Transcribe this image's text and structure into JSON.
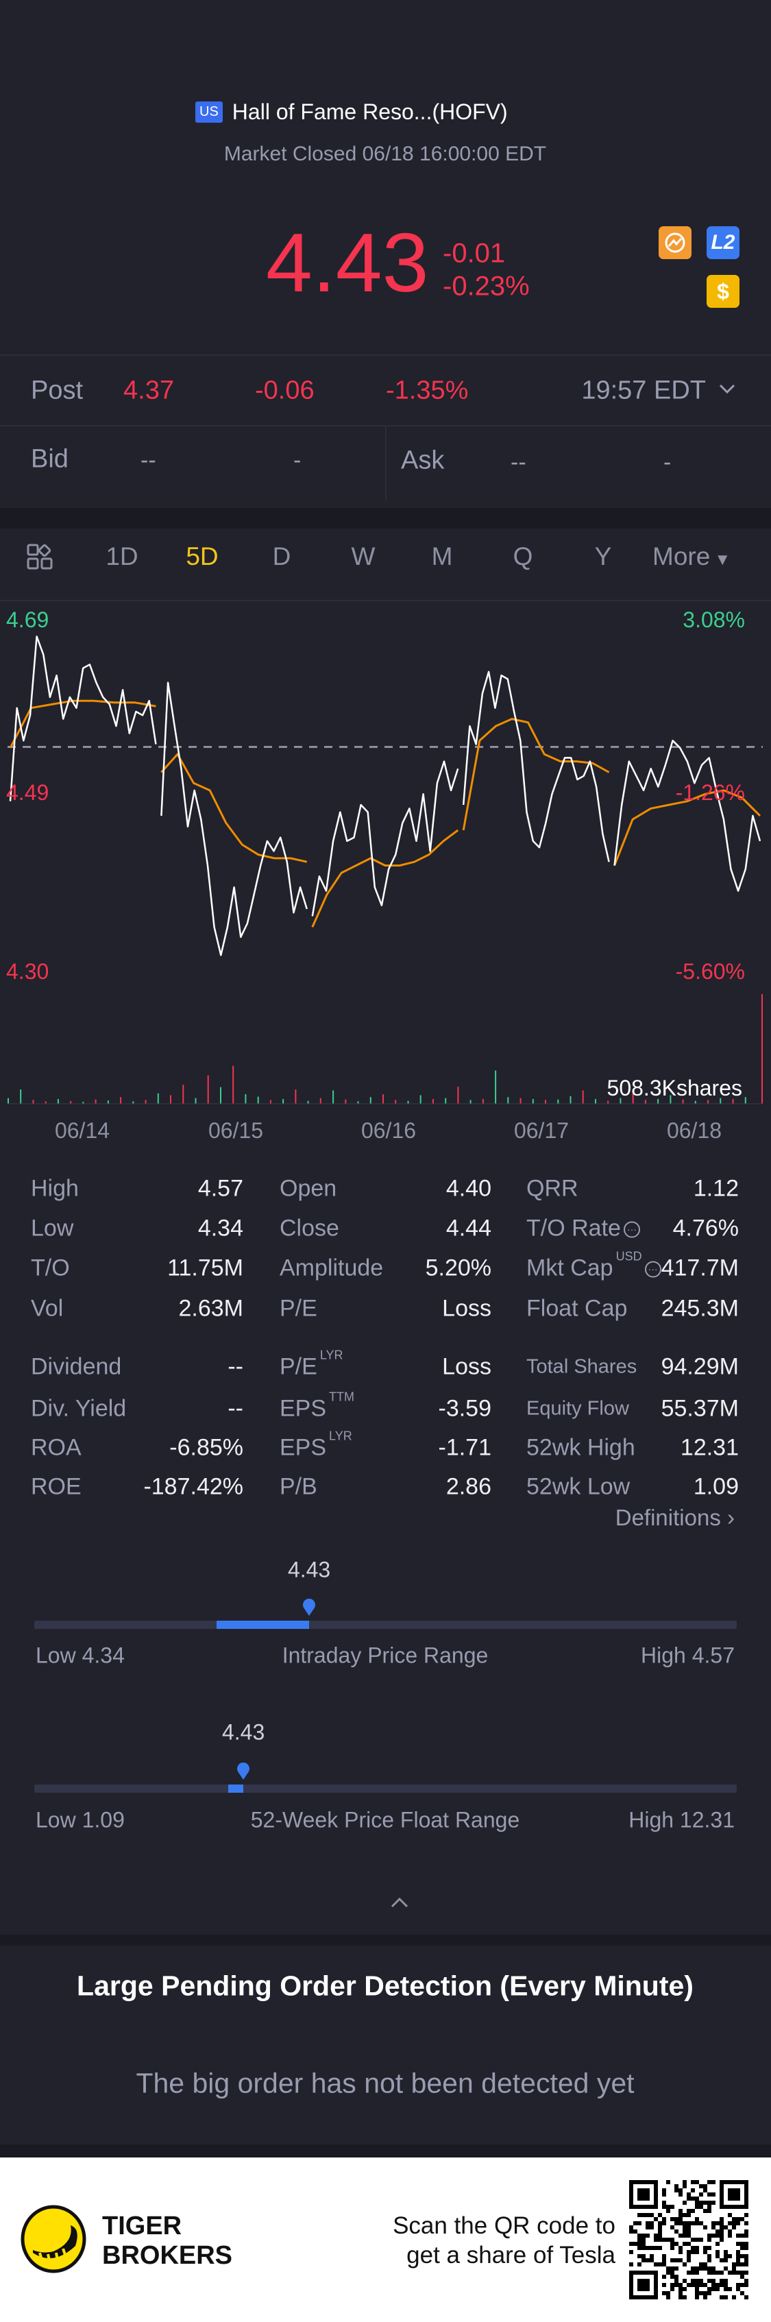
{
  "header": {
    "market_badge": "US",
    "title": "Hall of Fame Reso...(HOFV)",
    "status": "Market Closed 06/18 16:00:00 EDT"
  },
  "quote": {
    "price": "4.43",
    "change": "-0.01",
    "change_pct": "-0.23%",
    "icons": [
      "tradeup-icon",
      "level2-icon",
      "dollar-icon"
    ],
    "level2_label": "L2",
    "dollar_label": "$"
  },
  "post": {
    "label": "Post",
    "price": "4.37",
    "change": "-0.06",
    "change_pct": "-1.35%",
    "time": "19:57 EDT"
  },
  "bidask": {
    "bid_label": "Bid",
    "bid_price": "--",
    "bid_size": "-",
    "ask_label": "Ask",
    "ask_price": "--",
    "ask_size": "-"
  },
  "tabs": [
    {
      "label": "1D"
    },
    {
      "label": "5D",
      "active": true
    },
    {
      "label": "D"
    },
    {
      "label": "W"
    },
    {
      "label": "M"
    },
    {
      "label": "Q"
    },
    {
      "label": "Y"
    },
    {
      "label": "More"
    }
  ],
  "colors": {
    "up": "#3ccf8e",
    "down": "#f5344f",
    "accent": "#f5c518",
    "avg": "#f08c00",
    "blue": "#3a7bf2"
  },
  "chart_data": {
    "type": "line",
    "title": "5D intraday",
    "ylim": [
      4.3,
      4.69
    ],
    "y_labels_left": [
      "4.69",
      "4.49",
      "4.30"
    ],
    "y_labels_right": [
      "3.08%",
      "-1.26%",
      "-5.60%"
    ],
    "prev_close": 4.548,
    "categories": [
      "06/14",
      "06/15",
      "06/16",
      "06/17",
      "06/18"
    ],
    "volume_label": "508.3Kshares",
    "series": [
      {
        "name": "Price",
        "days": [
          [
            4.488,
            4.591,
            4.555,
            4.583,
            4.67,
            4.65,
            4.603,
            4.627,
            4.579,
            4.603,
            4.591,
            4.635,
            4.639,
            4.619,
            4.603,
            4.595,
            4.571,
            4.611,
            4.563,
            4.587,
            4.583,
            4.599,
            4.551
          ],
          [
            4.472,
            4.619,
            4.571,
            4.524,
            4.46,
            4.5,
            4.468,
            4.417,
            4.349,
            4.318,
            4.349,
            4.393,
            4.338,
            4.353,
            4.385,
            4.417,
            4.444,
            4.433,
            4.448,
            4.421,
            4.365,
            4.393,
            4.369
          ],
          [
            4.361,
            4.405,
            4.389,
            4.444,
            4.476,
            4.444,
            4.448,
            4.484,
            4.476,
            4.393,
            4.373,
            4.413,
            4.429,
            4.464,
            4.48,
            4.444,
            4.496,
            4.433,
            4.508,
            4.532,
            4.5,
            4.524
          ],
          [
            4.484,
            4.571,
            4.551,
            4.607,
            4.631,
            4.591,
            4.627,
            4.623,
            4.587,
            4.555,
            4.476,
            4.444,
            4.437,
            4.464,
            4.496,
            4.516,
            4.536,
            4.536,
            4.512,
            4.516,
            4.532,
            4.504,
            4.452,
            4.421
          ],
          [
            4.417,
            4.484,
            4.532,
            4.516,
            4.5,
            4.524,
            4.504,
            4.528,
            4.555,
            4.547,
            4.532,
            4.508,
            4.528,
            4.536,
            4.5,
            4.468,
            4.413,
            4.389,
            4.413,
            4.472,
            4.444
          ]
        ]
      },
      {
        "name": "Avg",
        "days": [
          [
            4.547,
            4.591,
            4.595,
            4.599,
            4.599,
            4.597,
            4.597,
            4.593
          ],
          [
            4.52,
            4.54,
            4.508,
            4.5,
            4.464,
            4.44,
            4.429,
            4.425,
            4.425,
            4.421
          ],
          [
            4.349,
            4.385,
            4.409,
            4.417,
            4.425,
            4.417,
            4.417,
            4.421,
            4.429,
            4.444,
            4.456
          ],
          [
            4.456,
            4.555,
            4.571,
            4.579,
            4.575,
            4.54,
            4.532,
            4.532,
            4.53,
            4.52
          ],
          [
            4.417,
            4.468,
            4.48,
            4.484,
            4.488,
            4.496,
            4.5,
            4.492,
            4.472
          ]
        ]
      }
    ],
    "volume_k": [
      12,
      30,
      8,
      5,
      10,
      6,
      4,
      9,
      7,
      14,
      5,
      8,
      22,
      18,
      40,
      12,
      60,
      35,
      80,
      20,
      15,
      8,
      10,
      30,
      6,
      12,
      28,
      9,
      5,
      14,
      20,
      8,
      6,
      18,
      10,
      12,
      36,
      8,
      10,
      70,
      14,
      12,
      10,
      8,
      9,
      16,
      28,
      10,
      6,
      12,
      22,
      8,
      10,
      18,
      9,
      6,
      8,
      12,
      10,
      14,
      508.3
    ],
    "volume_up": [
      true,
      true,
      false,
      false,
      true,
      false,
      true,
      false,
      true,
      false,
      true,
      false,
      true,
      false,
      false,
      true,
      false,
      true,
      false,
      true,
      true,
      false,
      true,
      false,
      true,
      false,
      true,
      false,
      true,
      true,
      false,
      false,
      true,
      true,
      false,
      true,
      false,
      true,
      false,
      true,
      true,
      false,
      true,
      false,
      true,
      true,
      false,
      true,
      false,
      true,
      false,
      false,
      true,
      true,
      false,
      true,
      false,
      true,
      false,
      true,
      false
    ]
  },
  "stats": {
    "rows1": [
      [
        {
          "l": "High",
          "v": "4.57"
        },
        {
          "l": "Open",
          "v": "4.40"
        },
        {
          "l": "QRR",
          "v": "1.12"
        }
      ],
      [
        {
          "l": "Low",
          "v": "4.34"
        },
        {
          "l": "Close",
          "v": "4.44"
        },
        {
          "l": "T/O Rate",
          "v": "4.76%"
        }
      ],
      [
        {
          "l": "T/O",
          "v": "11.75M"
        },
        {
          "l": "Amplitude",
          "v": "5.20%"
        },
        {
          "l": "Mkt Cap",
          "v": "417.7M",
          "sup": "USD"
        }
      ],
      [
        {
          "l": "Vol",
          "v": "2.63M"
        },
        {
          "l": "P/E",
          "v": "Loss"
        },
        {
          "l": "Float Cap",
          "v": "245.3M"
        }
      ]
    ],
    "rows2": [
      [
        {
          "l": "Dividend",
          "v": "--"
        },
        {
          "l": "P/E",
          "v": "Loss",
          "sup": "LYR"
        },
        {
          "l": "Total Shares",
          "v": "94.29M"
        }
      ],
      [
        {
          "l": "Div. Yield",
          "v": "--"
        },
        {
          "l": "EPS",
          "v": "-3.59",
          "sup": "TTM"
        },
        {
          "l": "Equity Flow",
          "v": "55.37M"
        }
      ],
      [
        {
          "l": "ROA",
          "v": "-6.85%"
        },
        {
          "l": "EPS",
          "v": "-1.71",
          "sup": "LYR"
        },
        {
          "l": "52wk High",
          "v": "12.31"
        }
      ],
      [
        {
          "l": "ROE",
          "v": "-187.42%"
        },
        {
          "l": "P/B",
          "v": "2.86"
        },
        {
          "l": "52wk Low",
          "v": "1.09"
        }
      ]
    ],
    "definitions": "Definitions"
  },
  "intraday": {
    "current": "4.43",
    "low": "Low 4.34",
    "high": "High 4.57",
    "title": "Intraday Price Range",
    "value": 4.43,
    "min": 4.34,
    "max": 4.57
  },
  "week52": {
    "current": "4.43",
    "low": "Low 1.09",
    "high": "High 12.31",
    "title": "52-Week Price Float Range",
    "value": 4.43,
    "min": 1.09,
    "max": 12.31
  },
  "pending": {
    "title": "Large Pending Order Detection (Every Minute)",
    "empty": "The big order has not been detected yet"
  },
  "footer": {
    "brand_line1": "TIGER",
    "brand_line2": "BROKERS",
    "promo_line1": "Scan the QR code to",
    "promo_line2": "get a share of Tesla"
  }
}
